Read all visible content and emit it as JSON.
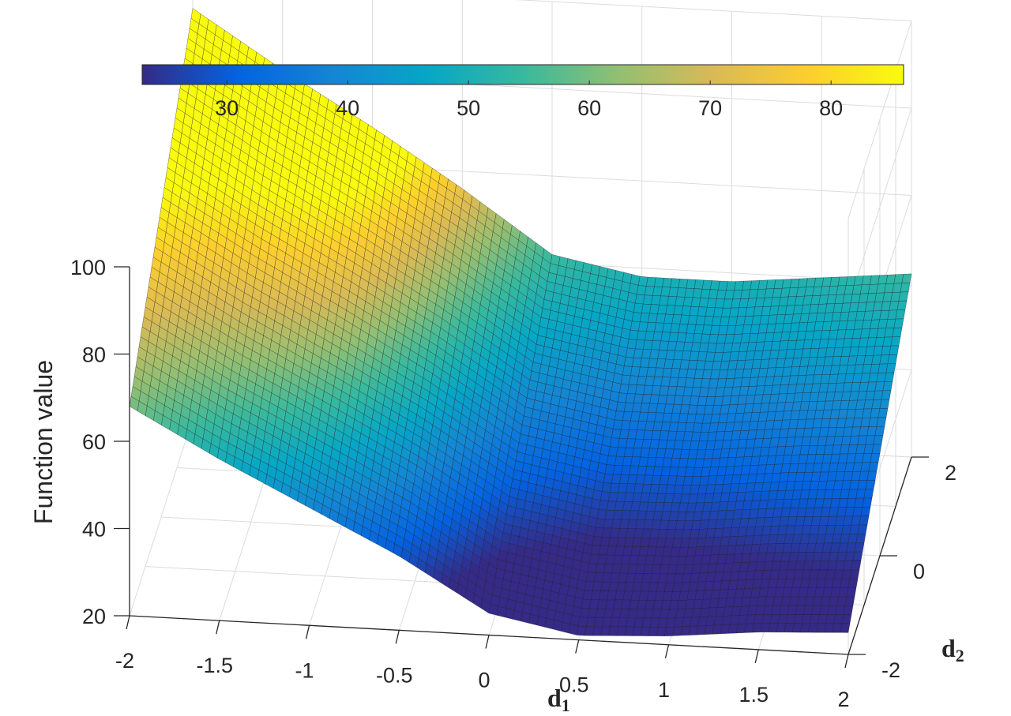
{
  "chart_data": {
    "type": "surface",
    "xlabel": "d",
    "xlabel_subscript": "1",
    "ylabel": "d",
    "ylabel_subscript": "2",
    "zlabel": "Function value",
    "x_ticks": [
      "-2",
      "-1.5",
      "-1",
      "-0.5",
      "0",
      "0.5",
      "1",
      "1.5",
      "2"
    ],
    "y_ticks": [
      "-2",
      "0",
      "2"
    ],
    "z_ticks": [
      "20",
      "40",
      "60",
      "80",
      "100"
    ],
    "xlim": [
      -2,
      2
    ],
    "ylim": [
      -2,
      2
    ],
    "zlim": [
      20,
      120
    ],
    "grid": true,
    "colormap": "parula",
    "colorbar": {
      "location": "top",
      "range": [
        23,
        86
      ],
      "ticks": [
        "30",
        "40",
        "50",
        "60",
        "70",
        "80"
      ]
    },
    "surface_profile": {
      "x": [
        -2,
        -1.5,
        -1,
        -0.5,
        0,
        0.5,
        1,
        1.5,
        2
      ],
      "z_at_d2_min": [
        68,
        57,
        47,
        37,
        25,
        21,
        22,
        24,
        25
      ],
      "z_at_d2_max": [
        114,
        101,
        89,
        76,
        62,
        58,
        58,
        60,
        62
      ]
    }
  }
}
